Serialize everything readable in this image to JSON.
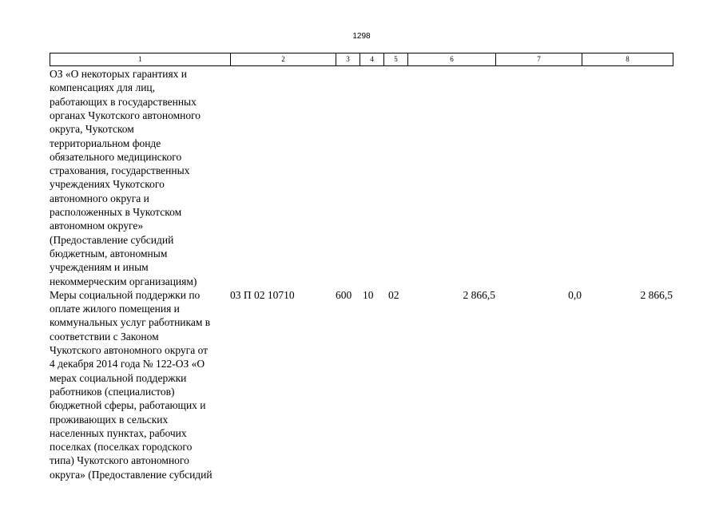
{
  "page_number": "1298",
  "table": {
    "header": [
      "1",
      "2",
      "3",
      "4",
      "5",
      "6",
      "7",
      "8"
    ],
    "rows": [
      {
        "name": [
          "ОЗ «О некоторых гарантиях и",
          "компенсациях для лиц,",
          "работающих в государственных",
          "органах Чукотского автономного",
          "округа, Чукотском",
          "территориальном фонде",
          "обязательного медицинского",
          "страхования, государственных",
          "учреждениях Чукотского",
          "автономного округа и",
          "расположенных в Чукотском",
          "автономном округе»",
          "(Предоставление субсидий",
          "бюджетным, автономным",
          "учреждениям и иным",
          "некоммерческим организациям)"
        ]
      },
      {
        "name": [
          "Меры социальной поддержки по",
          "оплате жилого помещения и",
          "коммунальных услуг работникам в",
          "соответствии с Законом",
          "Чукотского автономного округа от",
          "4 декабря 2014 года № 122-ОЗ «О",
          "мерах социальной поддержки",
          "работников (специалистов)",
          "бюджетной сферы, работающих и",
          "проживающих в сельских",
          "населенных пунктах, рабочих",
          "поселках (поселках городского",
          "типа) Чукотского автономного",
          "округа» (Предоставление субсидий"
        ],
        "code": "03 П 02 10710",
        "vr": "600",
        "rz": "10",
        "pr": "02",
        "sum6": "2 866,5",
        "sum7": "0,0",
        "sum8": "2 866,5"
      }
    ]
  }
}
